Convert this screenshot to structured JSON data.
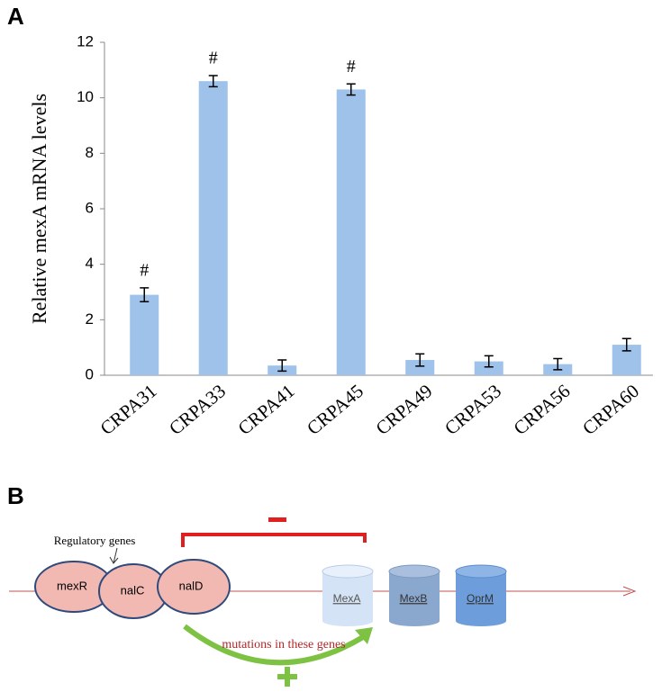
{
  "panels": [
    "A",
    "B"
  ],
  "chart_data": {
    "type": "bar",
    "y_label": "Relative mexA mRNA levels",
    "categories": [
      "CRPA31",
      "CRPA33",
      "CRPA41",
      "CRPA45",
      "CRPA49",
      "CRPA53",
      "CRPA56",
      "CRPA60"
    ],
    "values": [
      2.9,
      10.6,
      0.35,
      10.3,
      0.55,
      0.5,
      0.4,
      1.1
    ],
    "errors": [
      0.25,
      0.2,
      0.2,
      0.2,
      0.22,
      0.2,
      0.2,
      0.22
    ],
    "significance": [
      "#",
      "#",
      null,
      "#",
      null,
      null,
      null,
      null
    ],
    "color": "#9ec2ea",
    "ylim": [
      0,
      12
    ],
    "yticks": [
      0,
      2,
      4,
      6,
      8,
      10,
      12
    ],
    "grid": false
  },
  "diagram": {
    "regulatory_label": "Regulatory genes",
    "regulators": [
      "mexR",
      "nalC",
      "nalD"
    ],
    "pump": [
      "MexA",
      "MexB",
      "OprM"
    ],
    "mutation_label": "mutations in these genes"
  }
}
